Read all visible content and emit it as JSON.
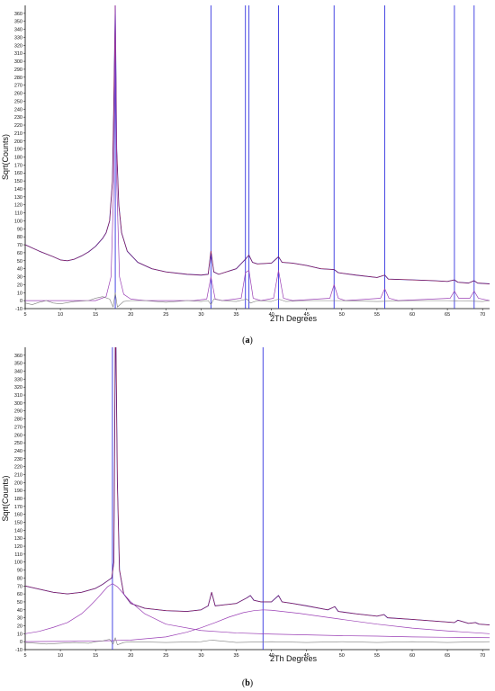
{
  "panels": [
    {
      "caption_prefix": "(",
      "caption_letter": "a",
      "caption_suffix": ")"
    },
    {
      "caption_prefix": "(",
      "caption_letter": "b",
      "caption_suffix": ")"
    }
  ],
  "colors": {
    "observed": "#1d1db8",
    "calculated": "#d42020",
    "component": "#9a3fb5",
    "difference": "#808080",
    "reflection_marker": "#3535e0",
    "axis": "#000000"
  },
  "chart_data": [
    {
      "type": "line",
      "xlabel": "2Th Degrees",
      "ylabel": "Sqrt(Counts)",
      "xlim": [
        5,
        71
      ],
      "ylim": [
        -10,
        370
      ],
      "x_ticks": [
        5,
        10,
        15,
        20,
        25,
        30,
        35,
        40,
        45,
        50,
        55,
        60,
        65,
        70
      ],
      "y_ticks": [
        -10,
        0,
        10,
        20,
        30,
        40,
        50,
        60,
        70,
        80,
        90,
        100,
        110,
        120,
        130,
        140,
        150,
        160,
        170,
        180,
        190,
        200,
        210,
        220,
        230,
        240,
        250,
        260,
        270,
        280,
        290,
        300,
        310,
        320,
        330,
        340,
        350,
        360
      ],
      "reflection_markers": [
        17.8,
        31.4,
        36.3,
        36.8,
        41.0,
        48.9,
        56.1,
        66.0,
        68.8
      ],
      "series": [
        {
          "x": [
            5,
            7,
            9,
            10,
            11,
            12,
            13,
            14,
            15,
            16,
            16.5,
            17,
            17.4,
            17.6,
            17.8,
            18,
            18.3,
            18.7,
            19.5,
            21,
            23,
            25,
            28,
            30,
            31,
            31.4,
            31.8,
            32.5,
            35,
            36.3,
            36.6,
            36.8,
            37.3,
            38,
            40,
            41,
            41.5,
            43,
            45,
            47,
            48.9,
            49.5,
            52,
            55,
            56.1,
            56.6,
            60,
            63,
            65,
            66,
            66.5,
            68,
            68.8,
            69.3,
            71
          ],
          "y": [
            70,
            62,
            55,
            51,
            50,
            52,
            56,
            61,
            68,
            78,
            85,
            100,
            150,
            250,
            370,
            190,
            120,
            85,
            62,
            48,
            40,
            36,
            33,
            32,
            33,
            62,
            36,
            33,
            40,
            52,
            55,
            57,
            48,
            46,
            47,
            55,
            48,
            47,
            44,
            40,
            39,
            35,
            32,
            29,
            32,
            27,
            26,
            25,
            24,
            26,
            23,
            22,
            25,
            22,
            21
          ]
        },
        {
          "x": [
            5,
            15,
            16.5,
            17.2,
            17.6,
            17.8,
            18,
            18.4,
            19,
            20,
            22,
            29,
            30.8,
            31.4,
            32,
            33,
            35.7,
            36.3,
            36.8,
            37.4,
            38.5,
            40.3,
            41,
            41.7,
            43,
            48.3,
            48.9,
            49.5,
            50.5,
            55.5,
            56.1,
            56.7,
            58,
            65.4,
            66,
            66.6,
            68.2,
            68.8,
            69.4,
            71
          ],
          "y": [
            0,
            0,
            5,
            30,
            150,
            370,
            150,
            30,
            8,
            2,
            0,
            0,
            2,
            30,
            2,
            0,
            3,
            35,
            38,
            3,
            0,
            3,
            38,
            3,
            0,
            3,
            20,
            3,
            0,
            3,
            15,
            3,
            0,
            3,
            12,
            3,
            3,
            12,
            3,
            0
          ]
        },
        {
          "x": [
            5,
            6,
            7,
            8,
            9,
            10,
            12,
            14,
            15,
            16,
            17,
            17.5,
            17.8,
            18.1,
            19,
            20,
            22,
            25,
            28,
            30,
            31,
            31.4,
            31.8,
            33,
            35,
            36.5,
            37,
            38,
            40,
            41,
            42,
            45,
            50,
            55,
            60,
            65,
            70,
            71
          ],
          "y": [
            -3,
            -5,
            -2,
            0,
            -3,
            -4,
            -1,
            0,
            3,
            5,
            2,
            -8,
            10,
            -8,
            -1,
            0,
            0,
            -2,
            0,
            -1,
            0,
            -5,
            2,
            0,
            -1,
            2,
            -3,
            0,
            -1,
            2,
            -1,
            0,
            0,
            -1,
            0,
            0,
            -1,
            0
          ]
        }
      ]
    },
    {
      "type": "line",
      "xlabel": "2Th Degrees",
      "ylabel": "Sqrt(Counts)",
      "xlim": [
        5,
        71
      ],
      "ylim": [
        -10,
        370
      ],
      "x_ticks": [
        5,
        10,
        15,
        20,
        25,
        30,
        35,
        40,
        45,
        50,
        55,
        60,
        65,
        70
      ],
      "y_ticks": [
        -10,
        0,
        10,
        20,
        30,
        40,
        50,
        60,
        70,
        80,
        90,
        100,
        110,
        120,
        130,
        140,
        150,
        160,
        170,
        180,
        190,
        200,
        210,
        220,
        230,
        240,
        250,
        260,
        270,
        280,
        290,
        300,
        310,
        320,
        330,
        340,
        350,
        360
      ],
      "reflection_markers": [
        17.4,
        38.8
      ],
      "series": [
        {
          "x": [
            5,
            7,
            9,
            11,
            13,
            15,
            16,
            16.8,
            17.3,
            17.6,
            17.8,
            17.9,
            18.1,
            18.4,
            19,
            20,
            22,
            25,
            28,
            30,
            31,
            31.5,
            32,
            33,
            35,
            36.5,
            37,
            37.5,
            38.5,
            40,
            41,
            41.5,
            43,
            45,
            48,
            49,
            49.5,
            52,
            55,
            56,
            56.5,
            60,
            63,
            66,
            66.5,
            68,
            69,
            69.5,
            71
          ],
          "y": [
            70,
            66,
            62,
            60,
            62,
            67,
            72,
            77,
            80,
            100,
            370,
            370,
            200,
            90,
            60,
            48,
            42,
            39,
            38,
            40,
            45,
            62,
            45,
            46,
            48,
            55,
            58,
            52,
            50,
            50,
            58,
            50,
            48,
            45,
            40,
            44,
            38,
            35,
            32,
            34,
            30,
            28,
            26,
            24,
            27,
            23,
            24,
            22,
            21
          ]
        },
        {
          "x": [
            5,
            7,
            9,
            11,
            13,
            14,
            15,
            16,
            16.7,
            17.4,
            18.1,
            18.8,
            20,
            22,
            25,
            30,
            35,
            40,
            45,
            50,
            55,
            60,
            65,
            71
          ],
          "y": [
            10,
            13,
            18,
            24,
            35,
            43,
            52,
            62,
            69,
            73,
            69,
            62,
            50,
            35,
            22,
            14,
            11,
            9.5,
            8.5,
            7.5,
            7,
            6,
            5.5,
            5
          ]
        },
        {
          "x": [
            5,
            10,
            15,
            18,
            20,
            25,
            28,
            30,
            32,
            34,
            36,
            37.5,
            38.8,
            40,
            42,
            44,
            46,
            50,
            55,
            60,
            65,
            71
          ],
          "y": [
            0,
            0.3,
            0.7,
            1.5,
            2,
            6,
            12,
            17.5,
            24,
            31,
            36.5,
            39,
            40,
            39.5,
            37.5,
            35.5,
            33,
            28,
            22,
            17,
            13.5,
            10
          ]
        },
        {
          "x": [
            5,
            8,
            10,
            12,
            14,
            15,
            16,
            17,
            17.5,
            17.8,
            18.1,
            19,
            20,
            25,
            30,
            31.5,
            35,
            40,
            45,
            50,
            55,
            60,
            65,
            71
          ],
          "y": [
            -1,
            -3,
            -2,
            -1,
            -2,
            0,
            1,
            3,
            -3,
            5,
            -4,
            -1,
            0,
            -1,
            0,
            2,
            -1,
            0,
            -1,
            0,
            -1,
            0,
            -1,
            0
          ]
        }
      ]
    }
  ]
}
